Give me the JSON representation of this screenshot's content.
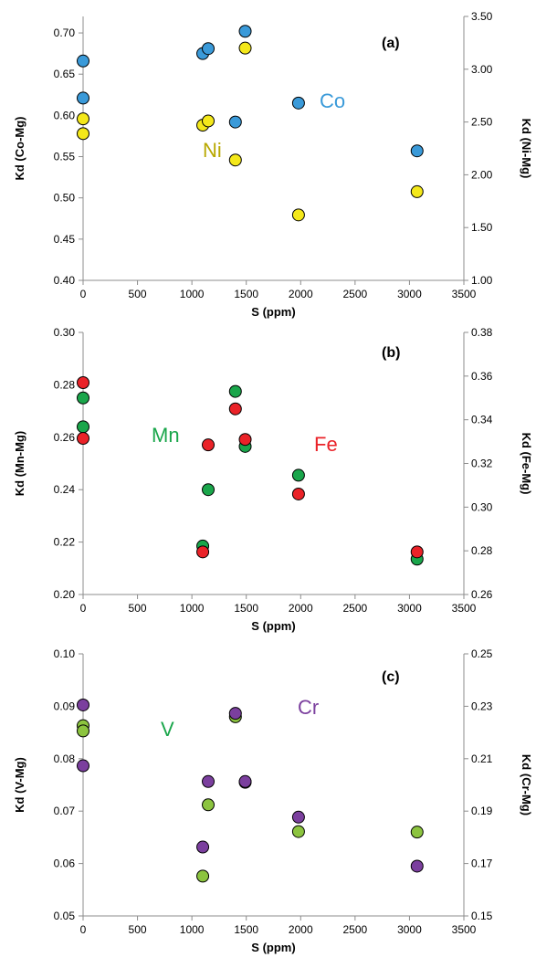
{
  "chart_data": [
    {
      "type": "scatter",
      "panel_label": "(a)",
      "xlabel": "S (ppm)",
      "ylabel": "Kd (Co-Mg)",
      "ylabel_right": "Kd (Ni-Mg)",
      "xlim": [
        0,
        3500
      ],
      "x_ticks": [
        "0",
        "500",
        "1000",
        "1500",
        "2000",
        "2500",
        "3000",
        "3500"
      ],
      "ylim": [
        0.4,
        0.72
      ],
      "y_ticks": [
        "0.40",
        "0.45",
        "0.50",
        "0.55",
        "0.60",
        "0.65",
        "0.70"
      ],
      "ylim_right": [
        1.0,
        3.5
      ],
      "y_ticks_right": [
        "1.00",
        "1.50",
        "2.00",
        "2.50",
        "3.00",
        "3.50"
      ],
      "grid": false,
      "series": [
        {
          "name": "Co",
          "axis": "left",
          "color": "#3a9ad9",
          "label_color": "#3a9ad9",
          "points": [
            [
              0,
              0.666
            ],
            [
              0,
              0.621
            ],
            [
              1100,
              0.675
            ],
            [
              1150,
              0.681
            ],
            [
              1400,
              0.592
            ],
            [
              1490,
              0.702
            ],
            [
              1980,
              0.615
            ],
            [
              3070,
              0.557
            ]
          ]
        },
        {
          "name": "Ni",
          "axis": "right",
          "color": "#f4e81a",
          "label_color": "#b8a800",
          "points": [
            [
              0,
              2.53
            ],
            [
              0,
              2.39
            ],
            [
              1100,
              2.47
            ],
            [
              1150,
              2.51
            ],
            [
              1400,
              2.14
            ],
            [
              1490,
              3.2
            ],
            [
              1980,
              1.62
            ],
            [
              3070,
              1.84
            ]
          ]
        }
      ]
    },
    {
      "type": "scatter",
      "panel_label": "(b)",
      "xlabel": "S (ppm)",
      "ylabel": "Kd (Mn-Mg)",
      "ylabel_right": "Kd (Fe-Mg)",
      "xlim": [
        0,
        3500
      ],
      "x_ticks": [
        "0",
        "500",
        "1000",
        "1500",
        "2000",
        "2500",
        "3000",
        "3500"
      ],
      "ylim": [
        0.2,
        0.3
      ],
      "y_ticks": [
        "0.20",
        "0.22",
        "0.24",
        "0.26",
        "0.28",
        "0.30"
      ],
      "ylim_right": [
        0.26,
        0.38
      ],
      "y_ticks_right": [
        "0.26",
        "0.28",
        "0.30",
        "0.32",
        "0.34",
        "0.36",
        "0.38"
      ],
      "grid": false,
      "series": [
        {
          "name": "Mn",
          "axis": "left",
          "color": "#1aa64b",
          "label_color": "#1aa64b",
          "points": [
            [
              0,
              0.275
            ],
            [
              0,
              0.264
            ],
            [
              1100,
              0.2185
            ],
            [
              1150,
              0.24
            ],
            [
              1400,
              0.2775
            ],
            [
              1490,
              0.2565
            ],
            [
              1980,
              0.2455
            ],
            [
              3070,
              0.2135
            ]
          ]
        },
        {
          "name": "Fe",
          "axis": "right",
          "color": "#ea2228",
          "label_color": "#ea2228",
          "points": [
            [
              0,
              0.357
            ],
            [
              0,
              0.3315
            ],
            [
              1100,
              0.2795
            ],
            [
              1150,
              0.3285
            ],
            [
              1400,
              0.345
            ],
            [
              1490,
              0.331
            ],
            [
              1980,
              0.306
            ],
            [
              3070,
              0.2795
            ]
          ]
        }
      ]
    },
    {
      "type": "scatter",
      "panel_label": "(c)",
      "xlabel": "S (ppm)",
      "ylabel": "Kd (V-Mg)",
      "ylabel_right": "Kd (Cr-Mg)",
      "xlim": [
        0,
        3500
      ],
      "x_ticks": [
        "0",
        "500",
        "1000",
        "1500",
        "2000",
        "2500",
        "3000",
        "3500"
      ],
      "ylim": [
        0.05,
        0.1
      ],
      "y_ticks": [
        "0.05",
        "0.06",
        "0.07",
        "0.08",
        "0.09",
        "0.10"
      ],
      "ylim_right": [
        0.15,
        0.25
      ],
      "y_ticks_right": [
        "0.15",
        "0.17",
        "0.19",
        "0.21",
        "0.23",
        "0.25"
      ],
      "grid": false,
      "series": [
        {
          "name": "V",
          "axis": "left",
          "color": "#8cc43f",
          "label_color": "#1aa64b",
          "points": [
            [
              0,
              0.0863
            ],
            [
              0,
              0.0853
            ],
            [
              1100,
              0.0576
            ],
            [
              1150,
              0.0712
            ],
            [
              1400,
              0.088
            ],
            [
              1490,
              0.0755
            ],
            [
              1980,
              0.0661
            ],
            [
              3070,
              0.066
            ]
          ]
        },
        {
          "name": "Cr",
          "axis": "right",
          "color": "#7b3f9e",
          "label_color": "#7b3f9e",
          "points": [
            [
              0,
              0.2305
            ],
            [
              0,
              0.2073
            ],
            [
              1100,
              0.1763
            ],
            [
              1150,
              0.2013
            ],
            [
              1400,
              0.2273
            ],
            [
              1490,
              0.2013
            ],
            [
              1980,
              0.1877
            ],
            [
              3070,
              0.169
            ]
          ]
        }
      ]
    }
  ]
}
